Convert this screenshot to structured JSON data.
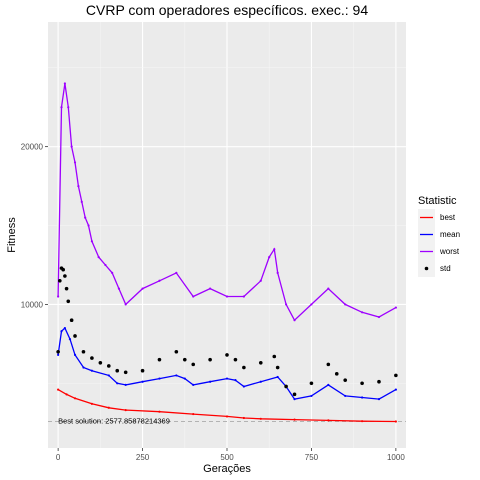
{
  "chart_data": {
    "type": "line",
    "title": "CVRP com operadores específicos. exec.: 94",
    "xlabel": "Gerações",
    "ylabel": "Fitness",
    "xlim": [
      -30,
      1030
    ],
    "ylim": [
      900,
      27900
    ],
    "x_ticks": [
      0,
      250,
      500,
      750,
      1000
    ],
    "y_ticks": [
      10000,
      20000
    ],
    "grid": true,
    "legend": {
      "title": "Statistic",
      "position": "right"
    },
    "annotation": {
      "text": "Best solution: 2577.85878214369",
      "x": 0,
      "y": 2200
    },
    "reference_line": {
      "y": 2577.86,
      "style": "dashed",
      "color": "#b3b3b3"
    },
    "series": [
      {
        "name": "best",
        "color": "#ff0000",
        "marker": "line",
        "x": [
          0,
          25,
          50,
          100,
          150,
          200,
          300,
          400,
          500,
          550,
          600,
          700,
          800,
          900,
          1000
        ],
        "y": [
          4600,
          4300,
          4050,
          3700,
          3450,
          3300,
          3200,
          3050,
          2900,
          2800,
          2750,
          2700,
          2650,
          2600,
          2580
        ]
      },
      {
        "name": "mean",
        "color": "#0000ff",
        "marker": "line",
        "x": [
          0,
          10,
          20,
          35,
          50,
          75,
          100,
          150,
          175,
          200,
          250,
          300,
          350,
          375,
          400,
          450,
          500,
          525,
          550,
          600,
          650,
          675,
          700,
          750,
          800,
          850,
          900,
          950,
          1000
        ],
        "y": [
          6800,
          8300,
          8500,
          7800,
          6800,
          6000,
          5800,
          5500,
          5000,
          4900,
          5100,
          5300,
          5500,
          5300,
          4900,
          5100,
          5300,
          5200,
          4800,
          5100,
          5400,
          4800,
          4000,
          4200,
          4900,
          4200,
          4100,
          4000,
          4600
        ]
      },
      {
        "name": "worst",
        "color": "#9e00ff",
        "marker": "line",
        "x": [
          0,
          10,
          20,
          30,
          40,
          50,
          60,
          70,
          80,
          90,
          100,
          120,
          140,
          160,
          180,
          200,
          250,
          300,
          350,
          400,
          450,
          500,
          550,
          600,
          625,
          640,
          650,
          675,
          700,
          750,
          800,
          850,
          900,
          950,
          1000
        ],
        "y": [
          10500,
          22500,
          24000,
          22500,
          20000,
          19000,
          17500,
          16500,
          15500,
          15000,
          14000,
          13000,
          12500,
          12000,
          11000,
          10000,
          11000,
          11500,
          12000,
          10500,
          11000,
          10500,
          10500,
          11500,
          13000,
          13500,
          12000,
          10000,
          9000,
          10000,
          11000,
          10000,
          9500,
          9200,
          9800
        ]
      },
      {
        "name": "std",
        "color": "#000000",
        "marker": "point",
        "x": [
          0,
          5,
          10,
          15,
          20,
          25,
          30,
          40,
          50,
          75,
          100,
          125,
          150,
          175,
          200,
          250,
          300,
          350,
          375,
          400,
          450,
          500,
          525,
          550,
          600,
          640,
          650,
          675,
          700,
          750,
          800,
          825,
          850,
          900,
          950,
          1000
        ],
        "y": [
          7000,
          11500,
          12300,
          12200,
          11800,
          11000,
          10200,
          9000,
          8000,
          7000,
          6600,
          6300,
          6100,
          5800,
          5700,
          5800,
          6500,
          7000,
          6500,
          6200,
          6500,
          6800,
          6500,
          6000,
          6300,
          6700,
          6000,
          4800,
          4300,
          5000,
          6200,
          5600,
          5200,
          5000,
          5100,
          5500
        ]
      }
    ]
  }
}
